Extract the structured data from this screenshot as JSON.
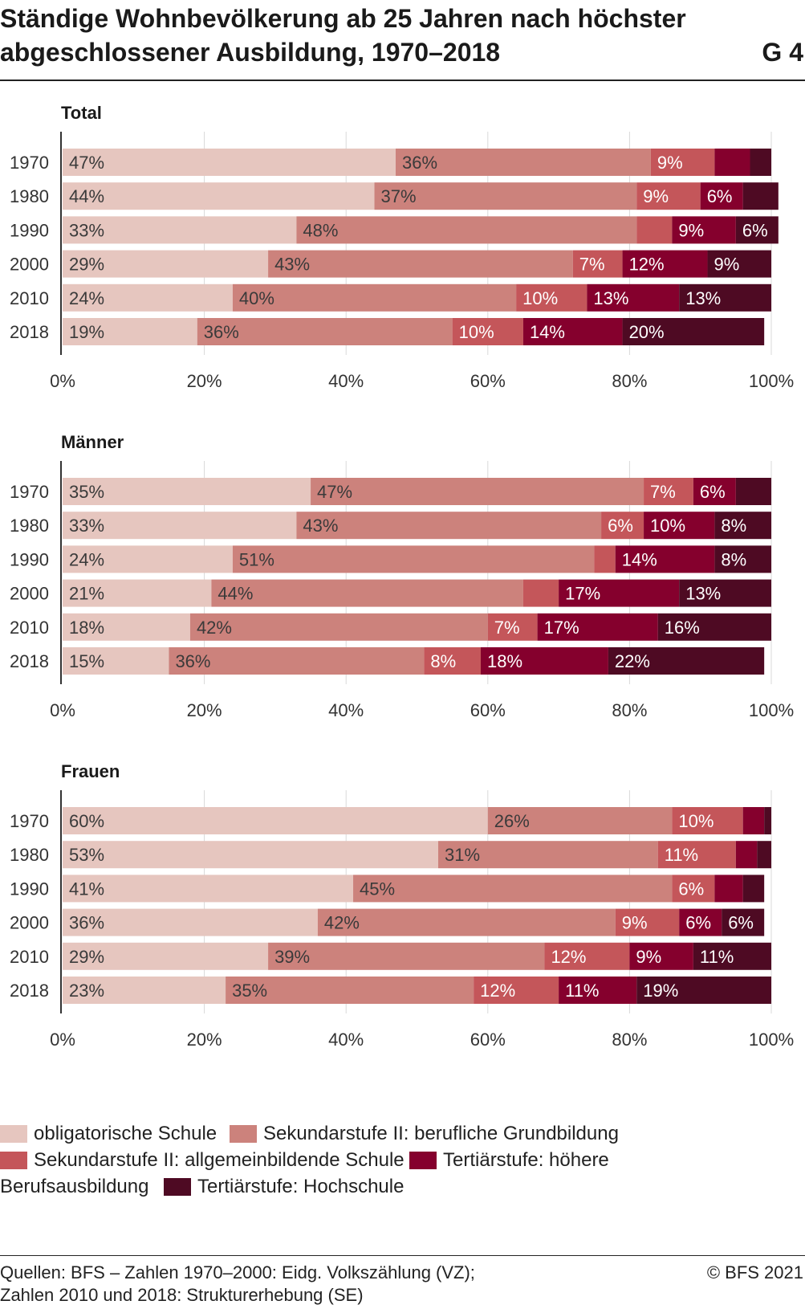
{
  "header": {
    "title": "Ständige Wohnbevölkerung ab 25 Jahren nach höchster abgeschlossener Ausbildung, 1970–2018",
    "badge": "G 4"
  },
  "colors": {
    "obligatorisch": "#e6c6bf",
    "beruflich": "#cc827c",
    "allgemein": "#c4565a",
    "hoehere": "#85002d",
    "hochschule": "#4e0a23"
  },
  "legend": {
    "items": [
      {
        "label": "obligatorische Schule",
        "color": "#e6c6bf"
      },
      {
        "label": "Sekundarstufe II: berufliche Grundbildung",
        "color": "#cc827c"
      },
      {
        "label": "Sekundarstufe II: allgemeinbildende Schule",
        "color": "#c4565a"
      },
      {
        "label": "Tertiärstufe: höhere",
        "color": "#85002d"
      },
      {
        "label": "Tertiärstufe: Hochschule",
        "color": "#4e0a23"
      }
    ],
    "wrap_text": "Berufsausbildung"
  },
  "footer": {
    "source_line1": "Quellen: BFS – Zahlen 1970–2000: Eidg. Volkszählung (VZ);",
    "source_line2": "Zahlen 2010 und 2018: Strukturerhebung (SE)",
    "copyright": "© BFS 2021"
  },
  "chart_data": [
    {
      "type": "bar",
      "stacked": true,
      "orientation": "horizontal",
      "title": "Total",
      "categories": [
        "1970",
        "1980",
        "1990",
        "2000",
        "2010",
        "2018"
      ],
      "xlim": [
        0,
        100
      ],
      "xticks": [
        "0%",
        "20%",
        "40%",
        "60%",
        "80%",
        "100%"
      ],
      "series": [
        {
          "name": "obligatorische Schule",
          "values": [
            47,
            44,
            33,
            29,
            24,
            19
          ],
          "labels": [
            "47%",
            "44%",
            "33%",
            "29%",
            "24%",
            "19%"
          ]
        },
        {
          "name": "Sekundarstufe II: berufliche Grundbildung",
          "values": [
            36,
            37,
            48,
            43,
            40,
            36
          ],
          "labels": [
            "36%",
            "37%",
            "48%",
            "43%",
            "40%",
            "36%"
          ]
        },
        {
          "name": "Sekundarstufe II: allgemeinbildende Schule",
          "values": [
            9,
            9,
            5,
            7,
            10,
            10
          ],
          "labels": [
            "9%",
            "9%",
            "",
            "7%",
            "10%",
            "10%"
          ]
        },
        {
          "name": "Tertiärstufe: höhere",
          "values": [
            5,
            6,
            9,
            12,
            13,
            14
          ],
          "labels": [
            "",
            "6%",
            "9%",
            "12%",
            "13%",
            "14%"
          ]
        },
        {
          "name": "Tertiärstufe: Hochschule",
          "values": [
            3,
            5,
            6,
            9,
            13,
            20
          ],
          "labels": [
            "",
            "",
            "6%",
            "9%",
            "13%",
            "20%"
          ]
        }
      ]
    },
    {
      "type": "bar",
      "stacked": true,
      "orientation": "horizontal",
      "title": "Männer",
      "categories": [
        "1970",
        "1980",
        "1990",
        "2000",
        "2010",
        "2018"
      ],
      "xlim": [
        0,
        100
      ],
      "xticks": [
        "0%",
        "20%",
        "40%",
        "60%",
        "80%",
        "100%"
      ],
      "series": [
        {
          "name": "obligatorische Schule",
          "values": [
            35,
            33,
            24,
            21,
            18,
            15
          ],
          "labels": [
            "35%",
            "33%",
            "24%",
            "21%",
            "18%",
            "15%"
          ]
        },
        {
          "name": "Sekundarstufe II: berufliche Grundbildung",
          "values": [
            47,
            43,
            51,
            44,
            42,
            36
          ],
          "labels": [
            "47%",
            "43%",
            "51%",
            "44%",
            "42%",
            "36%"
          ]
        },
        {
          "name": "Sekundarstufe II: allgemeinbildende Schule",
          "values": [
            7,
            6,
            3,
            5,
            7,
            8
          ],
          "labels": [
            "7%",
            "6%",
            "",
            "",
            "7%",
            "8%"
          ]
        },
        {
          "name": "Tertiärstufe: höhere",
          "values": [
            6,
            10,
            14,
            17,
            17,
            18
          ],
          "labels": [
            "6%",
            "10%",
            "14%",
            "17%",
            "17%",
            "18%"
          ]
        },
        {
          "name": "Tertiärstufe: Hochschule",
          "values": [
            5,
            8,
            8,
            13,
            16,
            22
          ],
          "labels": [
            "",
            "8%",
            "8%",
            "13%",
            "16%",
            "22%"
          ]
        }
      ]
    },
    {
      "type": "bar",
      "stacked": true,
      "orientation": "horizontal",
      "title": "Frauen",
      "categories": [
        "1970",
        "1980",
        "1990",
        "2000",
        "2010",
        "2018"
      ],
      "xlim": [
        0,
        100
      ],
      "xticks": [
        "0%",
        "20%",
        "40%",
        "60%",
        "80%",
        "100%"
      ],
      "series": [
        {
          "name": "obligatorische Schule",
          "values": [
            60,
            53,
            41,
            36,
            29,
            23
          ],
          "labels": [
            "60%",
            "53%",
            "41%",
            "36%",
            "29%",
            "23%"
          ]
        },
        {
          "name": "Sekundarstufe II: berufliche Grundbildung",
          "values": [
            26,
            31,
            45,
            42,
            39,
            35
          ],
          "labels": [
            "26%",
            "31%",
            "45%",
            "42%",
            "39%",
            "35%"
          ]
        },
        {
          "name": "Sekundarstufe II: allgemeinbildende Schule",
          "values": [
            10,
            11,
            6,
            9,
            12,
            12
          ],
          "labels": [
            "10%",
            "11%",
            "6%",
            "9%",
            "12%",
            "12%"
          ]
        },
        {
          "name": "Tertiärstufe: höhere",
          "values": [
            3,
            3,
            4,
            6,
            9,
            11
          ],
          "labels": [
            "",
            "",
            "",
            "6%",
            "9%",
            "11%"
          ]
        },
        {
          "name": "Tertiärstufe: Hochschule",
          "values": [
            1,
            2,
            3,
            6,
            11,
            19
          ],
          "labels": [
            "",
            "",
            "",
            "6%",
            "11%",
            "19%"
          ]
        }
      ]
    }
  ]
}
